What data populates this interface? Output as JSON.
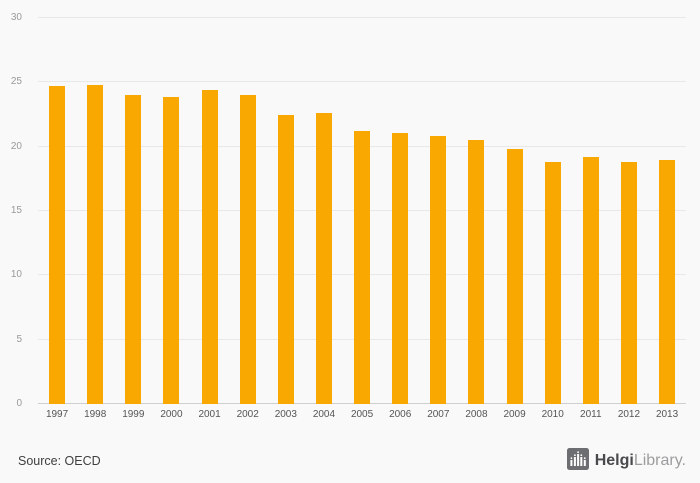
{
  "chart_data": {
    "type": "bar",
    "title": "",
    "xlabel": "",
    "ylabel": "",
    "categories": [
      "1997",
      "1998",
      "1999",
      "2000",
      "2001",
      "2002",
      "2003",
      "2004",
      "2005",
      "2006",
      "2007",
      "2008",
      "2009",
      "2010",
      "2011",
      "2012",
      "2013"
    ],
    "values": [
      24.7,
      24.8,
      24.0,
      23.9,
      24.4,
      24.0,
      22.5,
      22.6,
      21.2,
      21.1,
      20.8,
      20.5,
      19.8,
      18.8,
      19.2,
      18.8,
      19.0
    ],
    "ylim": [
      0,
      30
    ],
    "yticks": [
      0,
      5,
      10,
      15,
      20,
      25,
      30
    ],
    "bar_color": "#F8A800",
    "grid": true,
    "legend": "none"
  },
  "colors": {
    "background": "#f9f9f9",
    "gridline": "#e8e8e8",
    "axis_line": "#cfcfcf",
    "y_tick_label": "#9a9a9a",
    "x_tick_label": "#555555"
  },
  "footer": {
    "source_label": "Source: OECD",
    "logo": {
      "icon": "helgi-building-columns-icon",
      "brand_primary": "Helgi",
      "brand_secondary": "Library."
    }
  }
}
